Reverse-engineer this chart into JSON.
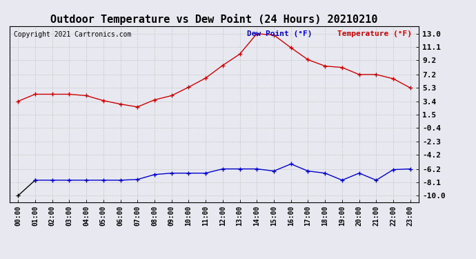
{
  "title": "Outdoor Temperature vs Dew Point (24 Hours) 20210210",
  "copyright": "Copyright 2021 Cartronics.com",
  "legend_dew": "Dew Point (°F)",
  "legend_temp": "Temperature (°F)",
  "x_labels": [
    "00:00",
    "01:00",
    "02:00",
    "03:00",
    "04:00",
    "05:00",
    "06:00",
    "07:00",
    "08:00",
    "09:00",
    "10:00",
    "11:00",
    "12:00",
    "13:00",
    "14:00",
    "15:00",
    "16:00",
    "17:00",
    "18:00",
    "19:00",
    "20:00",
    "21:00",
    "22:00",
    "23:00"
  ],
  "temperature": [
    3.4,
    4.4,
    4.4,
    4.4,
    4.2,
    3.5,
    3.0,
    2.6,
    3.6,
    4.2,
    5.4,
    6.7,
    8.5,
    10.1,
    13.0,
    12.8,
    11.0,
    9.3,
    8.4,
    8.2,
    7.2,
    7.2,
    6.6,
    5.3
  ],
  "dew_point": [
    -10.0,
    -7.8,
    -7.8,
    -7.8,
    -7.8,
    -7.8,
    -7.8,
    -7.7,
    -7.0,
    -6.8,
    -6.8,
    -6.8,
    -6.2,
    -6.2,
    -6.2,
    -6.5,
    -5.5,
    -6.5,
    -6.8,
    -7.8,
    -6.8,
    -7.8,
    -6.3,
    -6.2
  ],
  "yticks": [
    13.0,
    11.1,
    9.2,
    7.2,
    5.3,
    3.4,
    1.5,
    -0.4,
    -2.3,
    -4.2,
    -6.2,
    -8.1,
    -10.0
  ],
  "ymin": -10.9,
  "ymax": 14.1,
  "temp_color": "#cc0000",
  "dew_color": "#0000cc",
  "dew_color_start": "#000000",
  "grid_color": "#c8c8c8",
  "bg_color": "#e8e8f0",
  "plot_bg_color": "#e8e8f0",
  "title_color": "#000000",
  "copyright_color": "#000000",
  "legend_dew_color": "#0000cc",
  "legend_temp_color": "#cc0000",
  "title_fontsize": 11,
  "tick_fontsize": 8,
  "copyright_fontsize": 7,
  "legend_fontsize": 8
}
